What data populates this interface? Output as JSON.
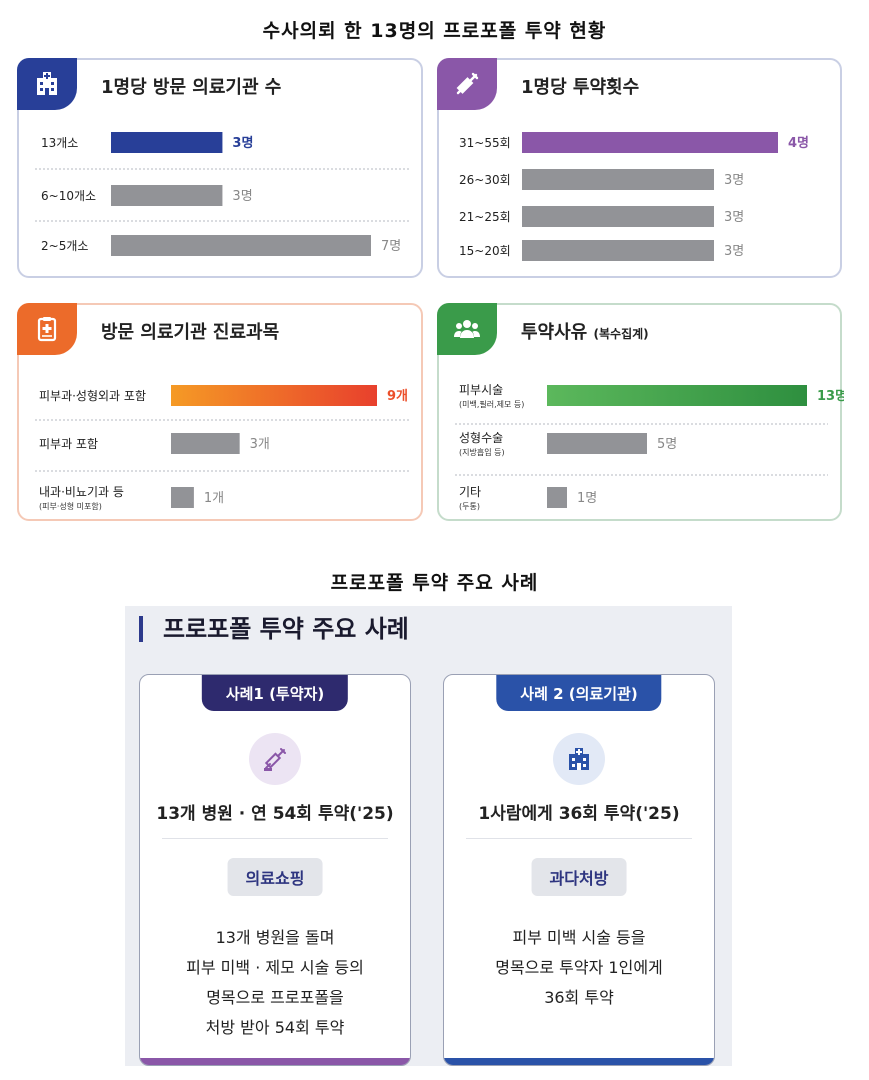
{
  "page_title": "수사의뢰 한 13명의 프로포폴 투약 현황",
  "colors": {
    "gray_bar": "#929397",
    "blue": "#283f98",
    "purple": "#8a57a8",
    "orange": "#ec4f2a",
    "green": "#3a9b4a"
  },
  "chart_data": [
    {
      "type": "bar",
      "title": "1명당 방문 의료기관 수",
      "icon": "hospital-icon",
      "categories": [
        "13개소",
        "6~10개소",
        "2~5개소"
      ],
      "values": [
        3,
        3,
        7
      ],
      "value_labels": [
        "3명",
        "3명",
        "7명"
      ],
      "highlight_index": 0,
      "highlight_color": "#283f98"
    },
    {
      "type": "bar",
      "title": "1명당 투약횟수",
      "icon": "syringe-icon",
      "categories": [
        "31~55회",
        "26~30회",
        "21~25회",
        "15~20회"
      ],
      "values": [
        4,
        3,
        3,
        3
      ],
      "value_labels": [
        "4명",
        "3명",
        "3명",
        "3명"
      ],
      "highlight_index": 0,
      "highlight_color": "#8a57a8"
    },
    {
      "type": "bar",
      "title": "방문 의료기관 진료과목",
      "icon": "clipboard-medical-icon",
      "categories": [
        "피부과·성형외과 포함",
        "피부과 포함",
        "내과·비뇨기과 등"
      ],
      "sublabels": [
        "",
        "",
        "(피부·성형 미포함)"
      ],
      "values": [
        9,
        3,
        1
      ],
      "value_labels": [
        "9개",
        "3개",
        "1개"
      ],
      "highlight_index": 0,
      "highlight_color": "#ec4f2a"
    },
    {
      "type": "bar",
      "title": "투약사유",
      "title_note": "(복수집계)",
      "icon": "people-group-icon",
      "categories": [
        "피부시술",
        "성형수술",
        "기타"
      ],
      "sublabels": [
        "(미백,필러,제모 등)",
        "(지방흡입 등)",
        "(두통)"
      ],
      "values": [
        13,
        5,
        1
      ],
      "value_labels": [
        "13명",
        "5명",
        "1명"
      ],
      "highlight_index": 0,
      "highlight_color": "#3a9b4a"
    }
  ],
  "cases_section_title": "프로포폴 투약 주요 사례",
  "cases_panel_heading": "프로포폴 투약 주요 사례",
  "cases": [
    {
      "tab": "사례1 (투약자)",
      "icon": "syringe-icon",
      "stat": "13개 병원 · 연 54회 투약('25)",
      "badge": "의료쇼핑",
      "desc": [
        "13개 병원을 돌며",
        "피부 미백 · 제모 시술 등의",
        "명목으로 프로포폴을",
        "처방 받아 54회 투약"
      ],
      "color": "#2e2a6e",
      "bottom_color": "#8a57a8"
    },
    {
      "tab": "사례 2 (의료기관)",
      "icon": "hospital-icon",
      "stat": "1사람에게 36회 투약('25)",
      "badge": "과다처방",
      "desc": [
        "피부 미백 시술 등을",
        "명목으로 투약자 1인에게",
        "36회 투약"
      ],
      "color": "#2a52a8",
      "bottom_color": "#2a52a8"
    }
  ]
}
